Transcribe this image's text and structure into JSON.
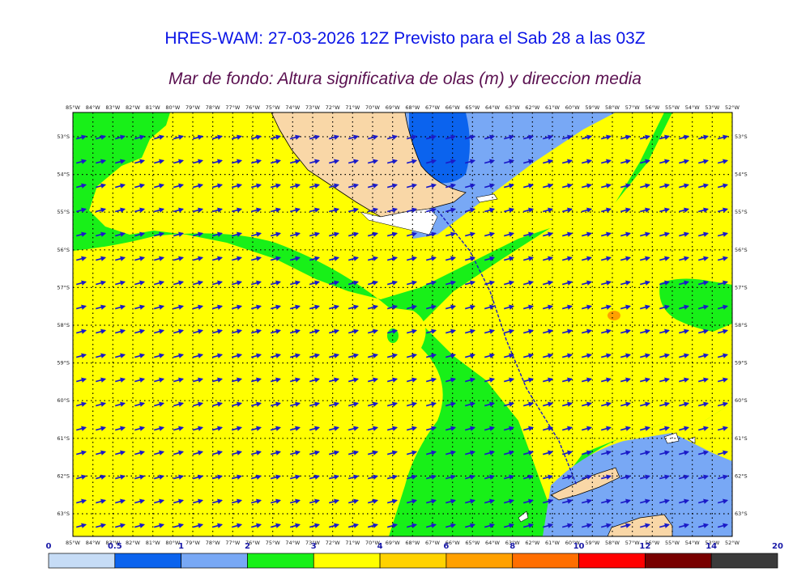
{
  "header": {
    "title": "HRES-WAM: 27-03-2026 12Z Previsto para el Sab 28 a las 03Z",
    "subtitle": "Mar de fondo: Altura significativa de olas (m) y direccion media"
  },
  "map": {
    "lon_labels": [
      "85°W",
      "84°W",
      "83°W",
      "82°W",
      "81°W",
      "80°W",
      "79°W",
      "78°W",
      "77°W",
      "76°W",
      "75°W",
      "74°W",
      "73°W",
      "72°W",
      "71°W",
      "70°W",
      "69°W",
      "68°W",
      "67°W",
      "66°W",
      "65°W",
      "64°W",
      "63°W",
      "62°W",
      "61°W",
      "60°W",
      "59°W",
      "58°W",
      "57°W",
      "56°W",
      "55°W",
      "54°W",
      "53°W",
      "52°W"
    ],
    "lat_labels": [
      "53°S",
      "54°S",
      "55°S",
      "56°S",
      "57°S",
      "58°S",
      "59°S",
      "60°S",
      "61°S",
      "62°S",
      "63°S"
    ],
    "wave_direction_deg": 75,
    "colors": {
      "land": "#f9d7a7",
      "ice": "#ffffff",
      "arrow": "#1a1ac8",
      "grid": "#000000"
    }
  },
  "colorbar": {
    "ticks": [
      "0",
      "0.5",
      "1",
      "2",
      "3",
      "4",
      "6",
      "8",
      "10",
      "12",
      "14",
      "20"
    ],
    "bins": [
      {
        "from": "0",
        "to": "0.5",
        "color": "#c6dcf6"
      },
      {
        "from": "0.5",
        "to": "1",
        "color": "#0b63ee"
      },
      {
        "from": "1",
        "to": "2",
        "color": "#78a8f5"
      },
      {
        "from": "2",
        "to": "3",
        "color": "#18f018"
      },
      {
        "from": "3",
        "to": "4",
        "color": "#ffff00"
      },
      {
        "from": "4",
        "to": "6",
        "color": "#ffd200"
      },
      {
        "from": "6",
        "to": "8",
        "color": "#ffa000"
      },
      {
        "from": "8",
        "to": "10",
        "color": "#ff6e00"
      },
      {
        "from": "10",
        "to": "12",
        "color": "#ff0000"
      },
      {
        "from": "12",
        "to": "14",
        "color": "#780000"
      },
      {
        "from": "14",
        "to": "20",
        "color": "#3a3a3a"
      }
    ]
  }
}
